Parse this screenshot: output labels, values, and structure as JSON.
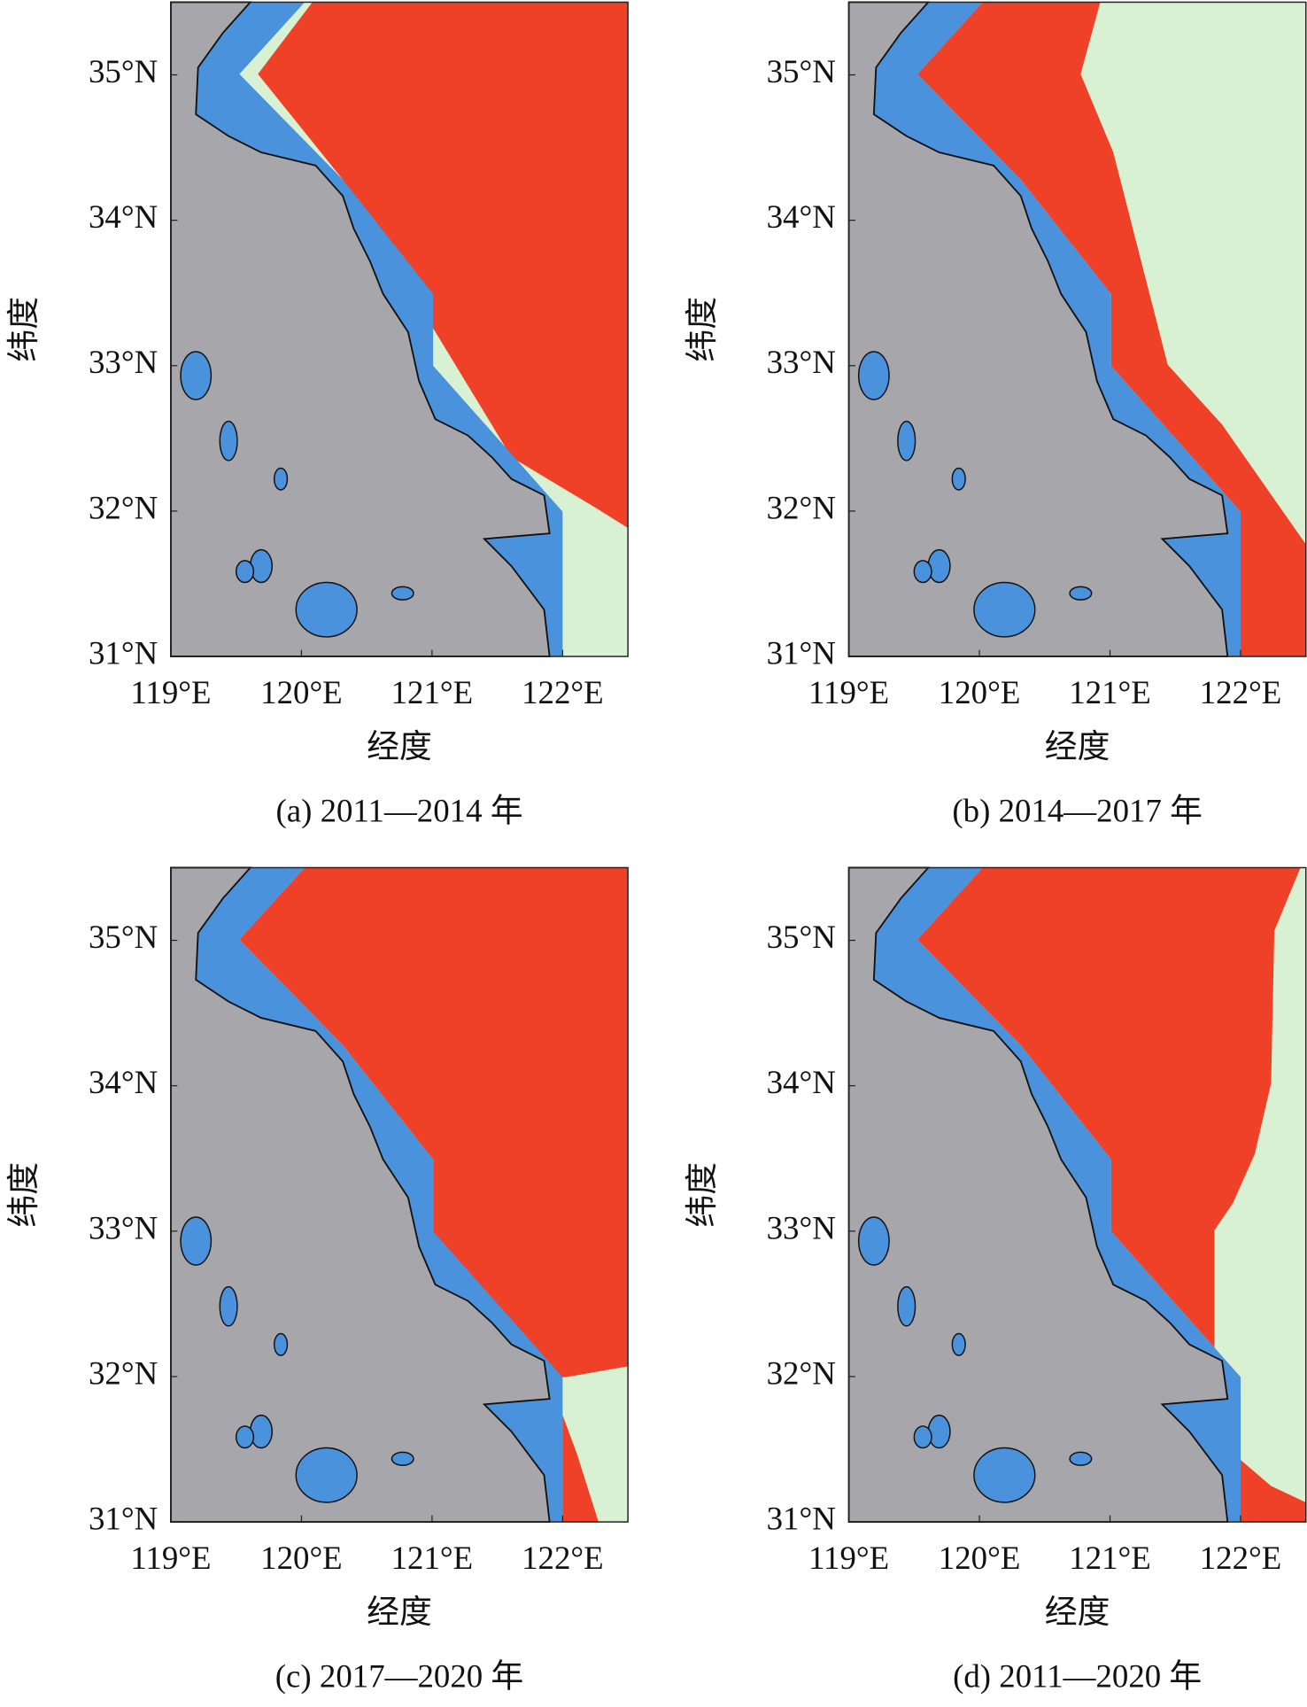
{
  "panels": [
    {
      "caption": "(a) 2011—2014 年",
      "xlabel": "经度",
      "ylabel": "纬度",
      "xlim": [
        119,
        122.5
      ],
      "ylim": [
        31,
        35.5
      ],
      "xticks": [
        {
          "value": 119,
          "label": "119°E"
        },
        {
          "value": 120,
          "label": "120°E"
        },
        {
          "value": 121,
          "label": "121°E"
        },
        {
          "value": 122,
          "label": "122°E"
        }
      ],
      "yticks": [
        {
          "value": 31,
          "label": "31°N"
        },
        {
          "value": 32,
          "label": "32°N"
        },
        {
          "value": 33,
          "label": "33°N"
        },
        {
          "value": 34,
          "label": "34°N"
        },
        {
          "value": 35,
          "label": "35°N"
        }
      ]
    },
    {
      "caption": "(b) 2014—2017 年",
      "xlabel": "经度",
      "ylabel": "纬度",
      "xlim": [
        119,
        122.5
      ],
      "ylim": [
        31,
        35.5
      ],
      "xticks": [
        {
          "value": 119,
          "label": "119°E"
        },
        {
          "value": 120,
          "label": "120°E"
        },
        {
          "value": 121,
          "label": "121°E"
        },
        {
          "value": 122,
          "label": "122°E"
        }
      ],
      "yticks": [
        {
          "value": 31,
          "label": "31°N"
        },
        {
          "value": 32,
          "label": "32°N"
        },
        {
          "value": 33,
          "label": "33°N"
        },
        {
          "value": 34,
          "label": "34°N"
        },
        {
          "value": 35,
          "label": "35°N"
        }
      ]
    },
    {
      "caption": "(c) 2017—2020 年",
      "xlabel": "经度",
      "ylabel": "纬度",
      "xlim": [
        119,
        122.5
      ],
      "ylim": [
        31,
        35.5
      ],
      "xticks": [
        {
          "value": 119,
          "label": "119°E"
        },
        {
          "value": 120,
          "label": "120°E"
        },
        {
          "value": 121,
          "label": "121°E"
        },
        {
          "value": 122,
          "label": "122°E"
        }
      ],
      "yticks": [
        {
          "value": 31,
          "label": "31°N"
        },
        {
          "value": 32,
          "label": "32°N"
        },
        {
          "value": 33,
          "label": "33°N"
        },
        {
          "value": 34,
          "label": "34°N"
        },
        {
          "value": 35,
          "label": "35°N"
        }
      ]
    },
    {
      "caption": "(d) 2011—2020 年",
      "xlabel": "经度",
      "ylabel": "纬度",
      "xlim": [
        119,
        122.5
      ],
      "ylim": [
        31,
        35.5
      ],
      "xticks": [
        {
          "value": 119,
          "label": "119°E"
        },
        {
          "value": 120,
          "label": "120°E"
        },
        {
          "value": 121,
          "label": "121°E"
        },
        {
          "value": 122,
          "label": "122°E"
        }
      ],
      "yticks": [
        {
          "value": 31,
          "label": "31°N"
        },
        {
          "value": 32,
          "label": "32°N"
        },
        {
          "value": 33,
          "label": "33°N"
        },
        {
          "value": 34,
          "label": "34°N"
        },
        {
          "value": 35,
          "label": "35°N"
        }
      ]
    }
  ]
}
